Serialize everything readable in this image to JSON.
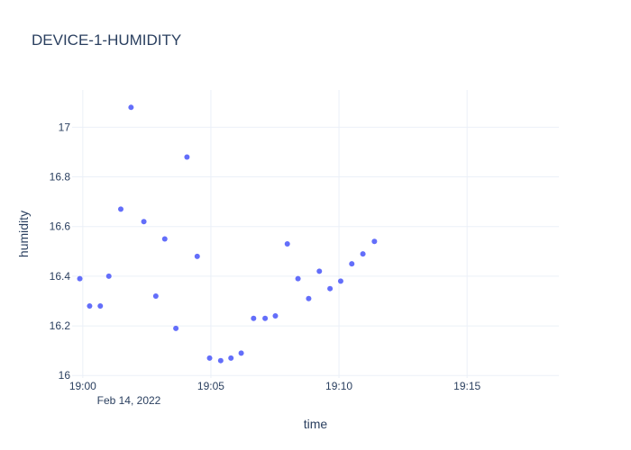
{
  "chart_data": {
    "type": "scatter",
    "title": "DEVICE-1-HUMIDITY",
    "xlabel": "time",
    "ylabel": "humidity",
    "x_date_label": "Feb 14, 2022",
    "x_ticks": [
      {
        "t": "19:00",
        "label": "19:00"
      },
      {
        "t": "19:05",
        "label": "19:05"
      },
      {
        "t": "19:10",
        "label": "19:10"
      },
      {
        "t": "19:15",
        "label": "19:15"
      }
    ],
    "xlim": [
      "18:59:35",
      "19:18:35"
    ],
    "ylim": [
      15.99,
      17.15
    ],
    "y_ticks": [
      16,
      16.2,
      16.4,
      16.6,
      16.8,
      17
    ],
    "y_tick_labels": [
      "16",
      "16.2",
      "16.4",
      "16.6",
      "16.8",
      "17"
    ],
    "grid": true,
    "marker_color": "#636efa",
    "points": [
      {
        "x": "18:59:53",
        "y": 16.39
      },
      {
        "x": "19:00:16",
        "y": 16.28
      },
      {
        "x": "19:00:41",
        "y": 16.28
      },
      {
        "x": "19:01:01",
        "y": 16.4
      },
      {
        "x": "19:01:29",
        "y": 16.67
      },
      {
        "x": "19:01:53",
        "y": 17.08
      },
      {
        "x": "19:02:23",
        "y": 16.62
      },
      {
        "x": "19:02:51",
        "y": 16.32
      },
      {
        "x": "19:03:12",
        "y": 16.55
      },
      {
        "x": "19:03:38",
        "y": 16.19
      },
      {
        "x": "19:04:04",
        "y": 16.88
      },
      {
        "x": "19:04:28",
        "y": 16.48
      },
      {
        "x": "19:04:57",
        "y": 16.07
      },
      {
        "x": "19:05:23",
        "y": 16.06
      },
      {
        "x": "19:05:47",
        "y": 16.07
      },
      {
        "x": "19:06:11",
        "y": 16.09
      },
      {
        "x": "19:06:40",
        "y": 16.23
      },
      {
        "x": "19:07:07",
        "y": 16.23
      },
      {
        "x": "19:07:31",
        "y": 16.24
      },
      {
        "x": "19:07:59",
        "y": 16.53
      },
      {
        "x": "19:08:24",
        "y": 16.39
      },
      {
        "x": "19:08:49",
        "y": 16.31
      },
      {
        "x": "19:09:14",
        "y": 16.42
      },
      {
        "x": "19:09:39",
        "y": 16.35
      },
      {
        "x": "19:10:04",
        "y": 16.38
      },
      {
        "x": "19:10:30",
        "y": 16.45
      },
      {
        "x": "19:10:56",
        "y": 16.49
      },
      {
        "x": "19:11:23",
        "y": 16.54
      }
    ]
  }
}
